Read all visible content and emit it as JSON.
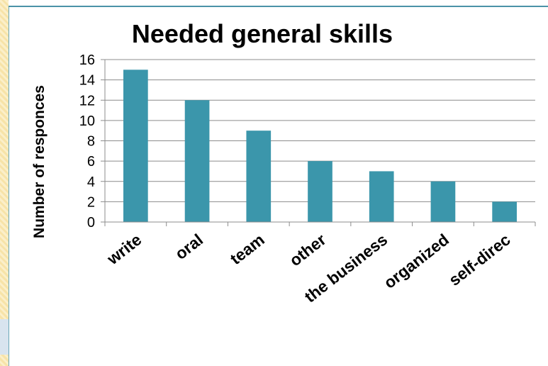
{
  "colors": {
    "bar": "#3b96ab",
    "grid": "#8c8c8c",
    "axis": "#8c8c8c",
    "text": "#000000"
  },
  "chart_data": {
    "type": "bar",
    "title": "Needed general skills",
    "xlabel": "",
    "ylabel": "Number of responces",
    "categories": [
      "write",
      "oral",
      "team",
      "other",
      "the business",
      "organized",
      "self-direc"
    ],
    "values": [
      15,
      12,
      9,
      6,
      5,
      4,
      2
    ],
    "ylim": [
      0,
      16
    ],
    "yticks": [
      0,
      2,
      4,
      6,
      8,
      10,
      12,
      14,
      16
    ],
    "grid": true,
    "legend": "none"
  }
}
